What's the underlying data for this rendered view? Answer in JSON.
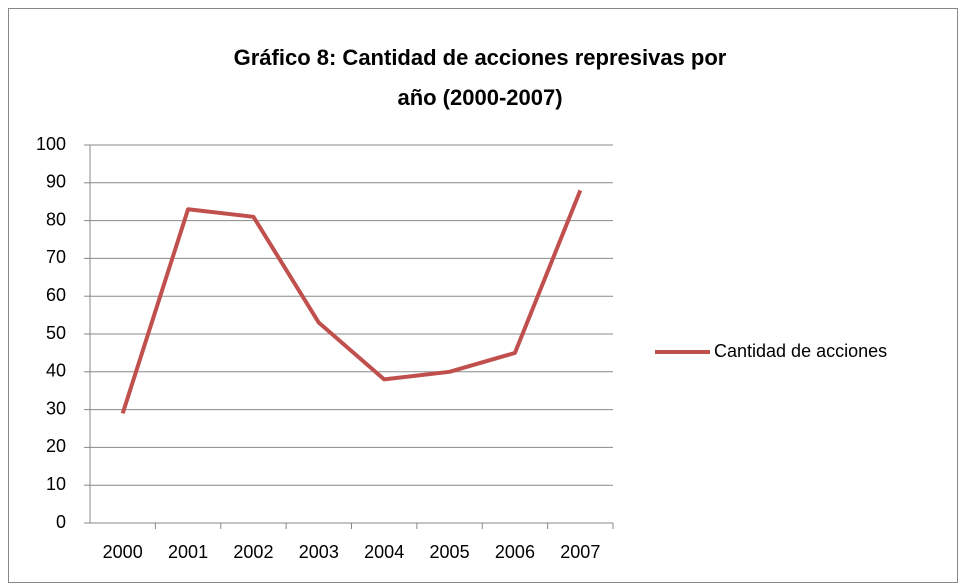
{
  "chart_data": {
    "type": "line",
    "title": "Gráfico 8: Cantidad de acciones represivas por año (2000-2007)",
    "categories": [
      "2000",
      "2001",
      "2002",
      "2003",
      "2004",
      "2005",
      "2006",
      "2007"
    ],
    "series": [
      {
        "name": "Cantidad de acciones",
        "color": "#c0504d",
        "values": [
          29,
          83,
          81,
          53,
          38,
          40,
          45,
          88
        ]
      }
    ],
    "ylim": [
      0,
      100
    ],
    "yticks": [
      0,
      10,
      20,
      30,
      40,
      50,
      60,
      70,
      80,
      90,
      100
    ],
    "grid": true,
    "legend": "right"
  }
}
